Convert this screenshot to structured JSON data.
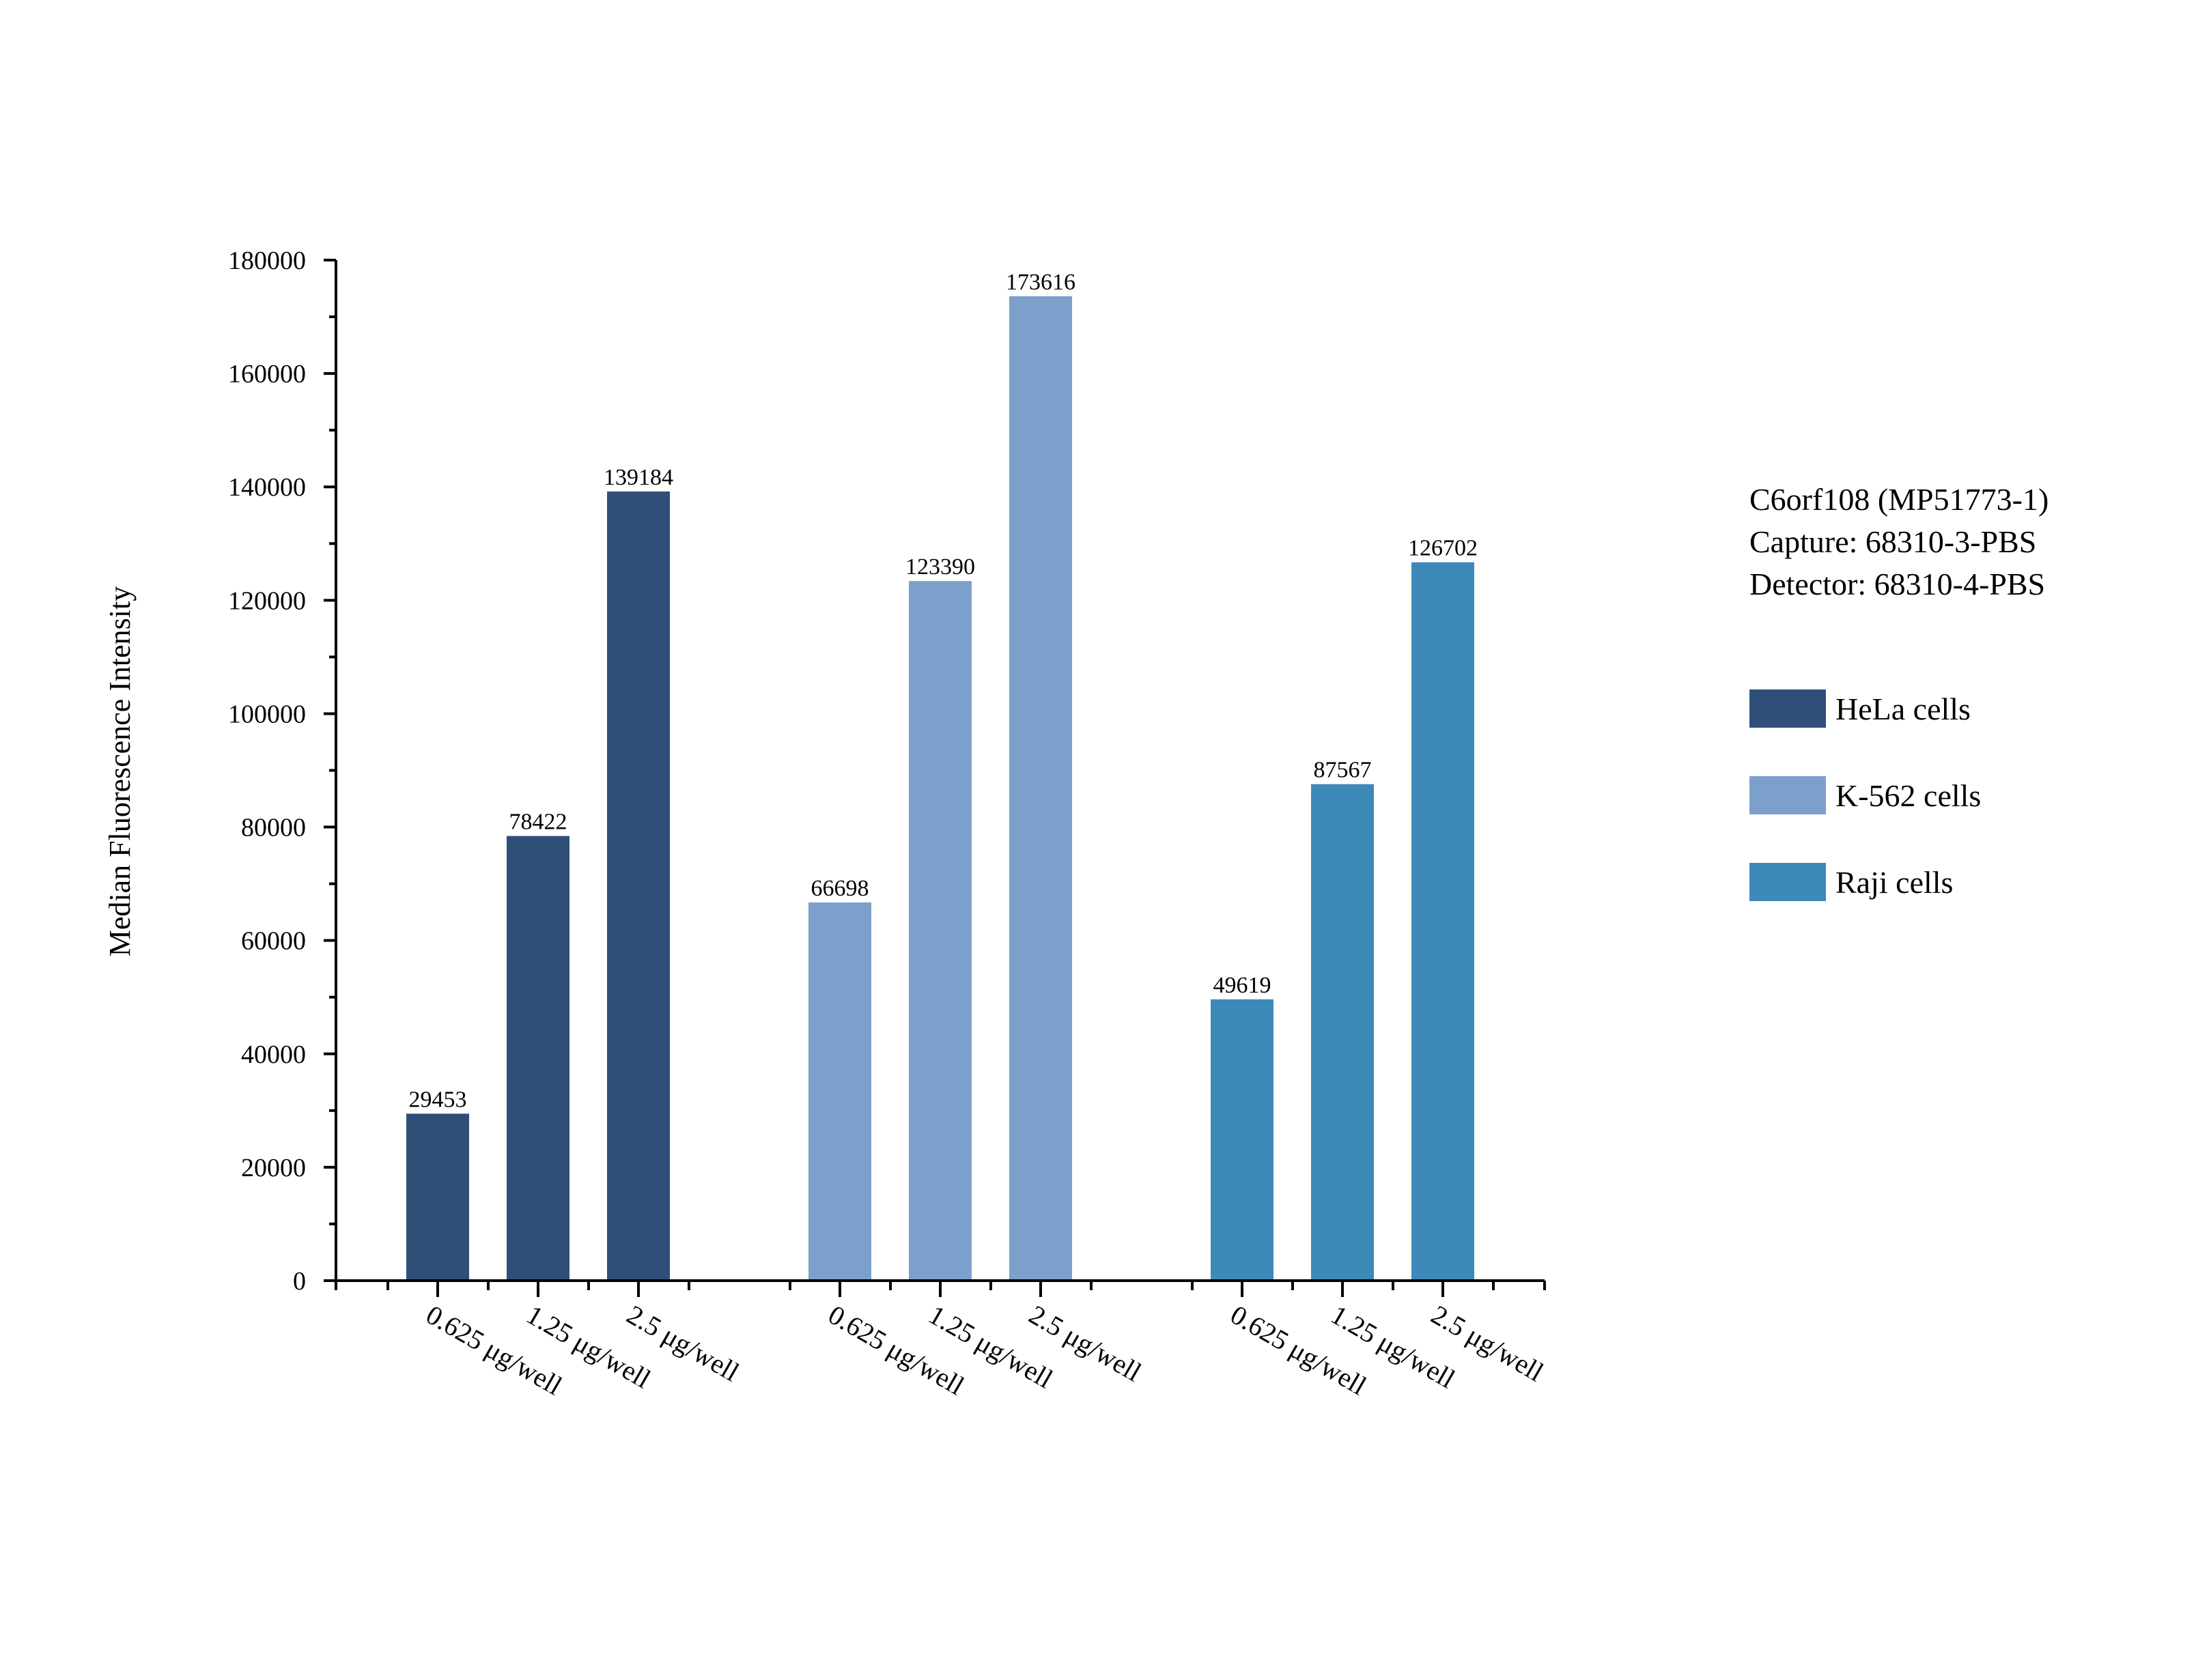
{
  "chart_data": {
    "type": "bar",
    "ylabel": "Median Fluorescence Intensity",
    "xlabel": "",
    "ylim": [
      0,
      180000
    ],
    "yticks": [
      0,
      20000,
      40000,
      60000,
      80000,
      100000,
      120000,
      140000,
      160000,
      180000
    ],
    "grid": false,
    "legend_position": "right",
    "info_lines": [
      "C6orf108 (MP51773-1)",
      "Capture: 68310-3-PBS",
      "Detector: 68310-4-PBS"
    ],
    "groups": [
      {
        "name": "HeLa cells",
        "color": "#2f4f79",
        "categories": [
          "0.625 μg/well",
          "1.25 μg/well",
          "2.5 μg/well"
        ],
        "values": [
          29453,
          78422,
          139184
        ]
      },
      {
        "name": "K-562 cells",
        "color": "#7d9fcc",
        "categories": [
          "0.625 μg/well",
          "1.25 μg/well",
          "2.5 μg/well"
        ],
        "values": [
          66698,
          123390,
          173616
        ]
      },
      {
        "name": "Raji cells",
        "color": "#3d89b8",
        "categories": [
          "0.625 μg/well",
          "1.25 μg/well",
          "2.5 μg/well"
        ],
        "values": [
          49619,
          87567,
          126702
        ]
      }
    ]
  }
}
